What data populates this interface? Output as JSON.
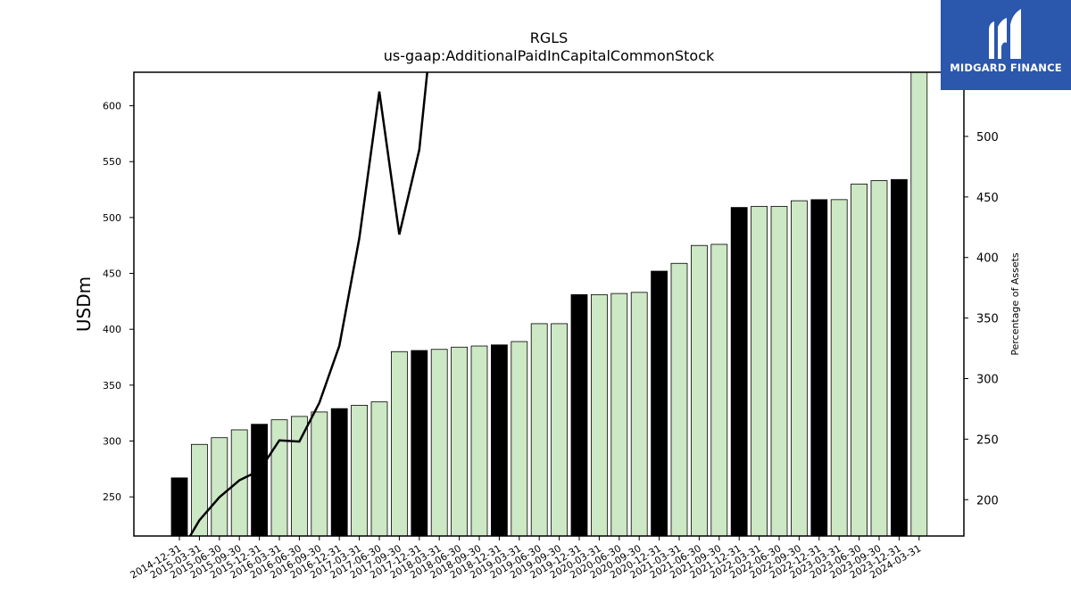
{
  "chart_data": {
    "type": "bar",
    "title": "RGLS",
    "subtitle": "us-gaap:AdditionalPaidInCapitalCommonStock",
    "ylabel": "USDm",
    "y2label": "Percentage of Assets",
    "ylim": [
      215,
      630
    ],
    "y2lim": [
      170,
      553
    ],
    "yticks": [
      250,
      300,
      350,
      400,
      450,
      500,
      550,
      600
    ],
    "y2ticks": [
      200,
      250,
      300,
      350,
      400,
      450,
      500
    ],
    "grid": false,
    "categories": [
      "2014-12-31",
      "2015-03-31",
      "2015-06-30",
      "2015-09-30",
      "2015-12-31",
      "2016-03-31",
      "2016-06-30",
      "2016-09-30",
      "2016-12-31",
      "2017-03-31",
      "2017-06-30",
      "2017-09-30",
      "2017-12-31",
      "2018-03-31",
      "2018-06-30",
      "2018-09-30",
      "2018-12-31",
      "2019-03-31",
      "2019-06-30",
      "2019-09-30",
      "2019-12-31",
      "2020-03-31",
      "2020-06-30",
      "2020-09-30",
      "2020-12-31",
      "2021-03-31",
      "2021-06-30",
      "2021-09-30",
      "2021-12-31",
      "2022-03-31",
      "2022-06-30",
      "2022-09-30",
      "2022-12-31",
      "2023-03-31",
      "2023-06-30",
      "2023-09-30",
      "2023-12-31",
      "2024-03-31"
    ],
    "values": [
      267,
      297,
      303,
      310,
      315,
      319,
      322,
      326,
      329,
      332,
      335,
      380,
      381,
      382,
      384,
      385,
      386,
      389,
      405,
      405,
      431,
      431,
      432,
      433,
      452,
      459,
      475,
      476,
      509,
      510,
      510,
      515,
      516,
      516,
      530,
      533,
      534,
      630
    ],
    "bar_colors": {
      "year_end": "#000000",
      "quarter": "#cce8c4"
    },
    "series": [
      {
        "name": "Percentage of Assets",
        "type": "line",
        "axis": "right",
        "color": "#000000",
        "values": [
          155,
          183,
          202,
          216,
          224,
          249,
          248,
          280,
          327,
          416,
          537,
          419,
          489,
          650,
          null,
          null,
          null,
          null,
          null,
          null,
          null,
          null,
          null,
          null,
          null,
          null,
          null,
          null,
          null,
          null,
          null,
          null,
          null,
          null,
          null,
          null,
          null,
          560
        ]
      }
    ]
  },
  "logo": {
    "text": "MIDGARD FINANCE"
  }
}
